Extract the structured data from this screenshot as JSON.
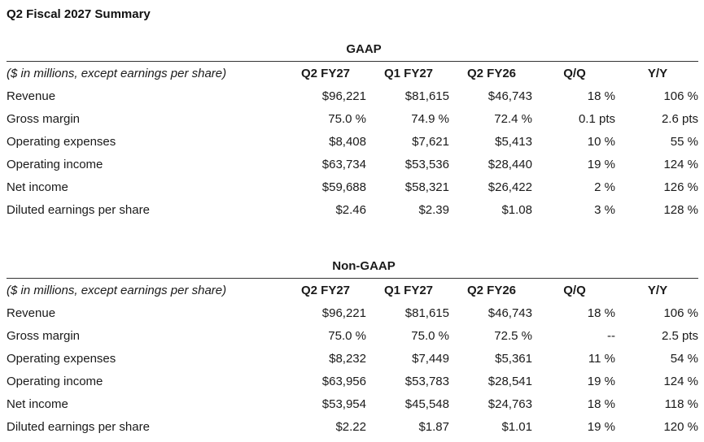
{
  "title": "Q2 Fiscal 2027 Summary",
  "sections": [
    {
      "title": "GAAP",
      "header_note": "($ in millions, except earnings per share)",
      "columns": [
        "Q2 FY27",
        "Q1 FY27",
        "Q2 FY26",
        "Q/Q",
        "Y/Y"
      ],
      "rows": [
        {
          "label": "Revenue",
          "values": [
            "$96,221",
            "$81,615",
            "$46,743",
            "18 %",
            "106 %"
          ]
        },
        {
          "label": "Gross margin",
          "values": [
            "75.0 %",
            "74.9 %",
            "72.4 %",
            "0.1 pts",
            "2.6 pts"
          ]
        },
        {
          "label": "Operating expenses",
          "values": [
            "$8,408",
            "$7,621",
            "$5,413",
            "10 %",
            "55 %"
          ]
        },
        {
          "label": "Operating income",
          "values": [
            "$63,734",
            "$53,536",
            "$28,440",
            "19 %",
            "124 %"
          ]
        },
        {
          "label": "Net income",
          "values": [
            "$59,688",
            "$58,321",
            "$26,422",
            "2 %",
            "126 %"
          ]
        },
        {
          "label": "Diluted earnings per share",
          "values": [
            "$2.46",
            "$2.39",
            "$1.08",
            "3 %",
            "128 %"
          ]
        }
      ]
    },
    {
      "title": "Non-GAAP",
      "header_note": "($ in millions, except earnings per share)",
      "columns": [
        "Q2 FY27",
        "Q1 FY27",
        "Q2 FY26",
        "Q/Q",
        "Y/Y"
      ],
      "rows": [
        {
          "label": "Revenue",
          "values": [
            "$96,221",
            "$81,615",
            "$46,743",
            "18 %",
            "106 %"
          ]
        },
        {
          "label": "Gross margin",
          "values": [
            "75.0 %",
            "75.0 %",
            "72.5 %",
            "--",
            "2.5 pts"
          ]
        },
        {
          "label": "Operating expenses",
          "values": [
            "$8,232",
            "$7,449",
            "$5,361",
            "11 %",
            "54 %"
          ]
        },
        {
          "label": "Operating income",
          "values": [
            "$63,956",
            "$53,783",
            "$28,541",
            "19 %",
            "124 %"
          ]
        },
        {
          "label": "Net income",
          "values": [
            "$53,954",
            "$45,548",
            "$24,763",
            "18 %",
            "118 %"
          ]
        },
        {
          "label": "Diluted earnings per share",
          "values": [
            "$2.22",
            "$1.87",
            "$1.01",
            "19 %",
            "120 %"
          ]
        }
      ]
    }
  ]
}
